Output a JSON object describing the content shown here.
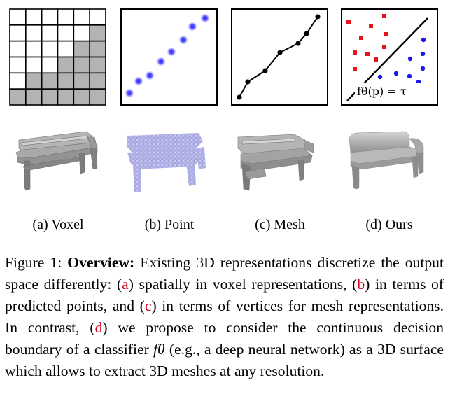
{
  "panels": {
    "voxel_label": "(a) Voxel",
    "point_label": "(b) Point",
    "mesh_label": "(c) Mesh",
    "ours_label": "(d) Ours"
  },
  "diagram": {
    "formula": "fθ(p) = τ",
    "class_colors": {
      "inside": "#e8121b",
      "outside": "#1a17e8"
    },
    "voxel_fill": "#b3b3b3"
  },
  "caption": {
    "prefix": "Figure 1: ",
    "title": "Overview:",
    "t1": " Existing 3D representations discretize the output space differently: (",
    "ref_a": "a",
    "t2": ") spatially in voxel represen­tations, (",
    "ref_b": "b",
    "t3": ") in terms of predicted points, and (",
    "ref_c": "c",
    "t4": ") in terms of vertices for mesh representations. In contrast, (",
    "ref_d": "d",
    "t5": ") we pro­pose to consider the continuous decision boundary of a clas­sifier ",
    "classifier_symbol": "fθ",
    "t6": " (e.g., a deep neural network) as a 3D surface which allows to extract 3D meshes at any resolution."
  }
}
